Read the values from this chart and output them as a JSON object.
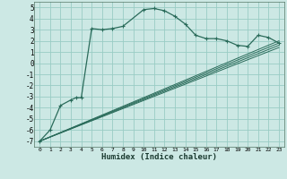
{
  "xlabel": "Humidex (Indice chaleur)",
  "background_color": "#cce8e4",
  "grid_color": "#99ccc4",
  "line_color": "#2a6b5a",
  "xlim": [
    -0.5,
    23.5
  ],
  "ylim": [
    -7.5,
    5.5
  ],
  "xticks": [
    0,
    1,
    2,
    3,
    4,
    5,
    6,
    7,
    8,
    9,
    10,
    11,
    12,
    13,
    14,
    15,
    16,
    17,
    18,
    19,
    20,
    21,
    22,
    23
  ],
  "yticks": [
    -7,
    -6,
    -5,
    -4,
    -3,
    -2,
    -1,
    0,
    1,
    2,
    3,
    4,
    5
  ],
  "main_curve": {
    "x": [
      0,
      1,
      2,
      3,
      3.5,
      4,
      5,
      6,
      7,
      8,
      10,
      11,
      12,
      13,
      14,
      15,
      16,
      17,
      18,
      19,
      20,
      21,
      22,
      23
    ],
    "y": [
      -7,
      -6,
      -3.8,
      -3.3,
      -3.1,
      -3.1,
      3.1,
      3.0,
      3.1,
      3.3,
      4.8,
      4.9,
      4.7,
      4.2,
      3.5,
      2.5,
      2.2,
      2.2,
      2.0,
      1.6,
      1.5,
      2.5,
      2.3,
      1.8
    ]
  },
  "linear_lines": [
    {
      "x": [
        0,
        23
      ],
      "y": [
        -7,
        1.4
      ]
    },
    {
      "x": [
        0,
        23
      ],
      "y": [
        -7,
        1.6
      ]
    },
    {
      "x": [
        0,
        23
      ],
      "y": [
        -7,
        1.8
      ]
    },
    {
      "x": [
        0,
        23
      ],
      "y": [
        -7,
        2.0
      ]
    }
  ]
}
